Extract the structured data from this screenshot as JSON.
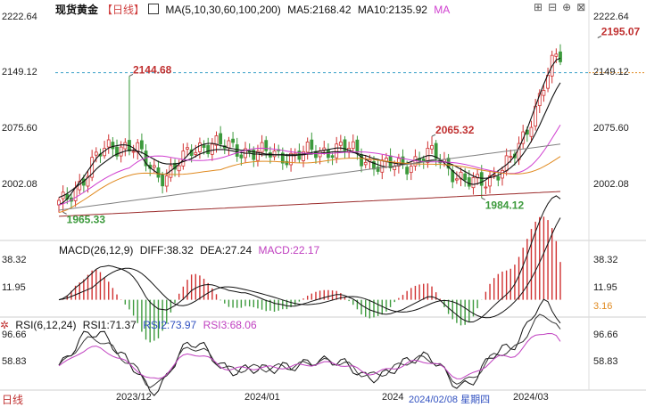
{
  "header": {
    "title": "现货黄金",
    "period": "【日线】",
    "ma_label": "MA(5,10,30,60,100,200)",
    "ma5": "MA5:2168.42",
    "ma10": "MA10:2135.92",
    "ma_tail": "MA"
  },
  "macd_header": {
    "label": "MACD(26,12,9)",
    "diff": "DIFF:38.32",
    "dea": "DEA:27.24",
    "macd": "MACD:22.17"
  },
  "rsi_header": {
    "label": "RSI(6,12,24)",
    "rsi1": "RSI1:71.37",
    "rsi2": "RSI2:73.97",
    "rsi3": "RSI3:68.06"
  },
  "footer": {
    "period": "日线"
  },
  "toolbar_icons": [
    "expand-icon",
    "shrink-icon",
    "add-indicator-icon",
    "close-icon"
  ],
  "colors": {
    "up": "#d03030",
    "down": "#3c9a3c",
    "ma5": "#111111",
    "ma10": "#111111",
    "ma30": "#d040d0",
    "ma60": "#e08a20",
    "ma100": "#808080",
    "ma200": "#9b2b2b",
    "diff": "#111111",
    "dea": "#111111",
    "rsi1": "#111111",
    "rsi2": "#333333",
    "rsi3": "#c040c0"
  },
  "chart_data": {
    "type": "candlestick",
    "price_axis": {
      "ticks": [
        "2222.64",
        "2149.12",
        "2075.60",
        "2002.08"
      ],
      "current": "2149.12"
    },
    "price_annotations": [
      {
        "label": "2144.68",
        "value": 2144.68,
        "index": 17,
        "kind": "high"
      },
      {
        "label": "1965.33",
        "value": 1965.33,
        "index": 1,
        "kind": "low"
      },
      {
        "label": "2065.32",
        "value": 2065.32,
        "index": 90,
        "kind": "high"
      },
      {
        "label": "1984.12",
        "value": 1984.12,
        "index": 102,
        "kind": "low"
      },
      {
        "label": "2195.07",
        "value": 2195.07,
        "index": 130,
        "kind": "high"
      }
    ],
    "macd_axis": {
      "ticks": [
        "38.32",
        "11.95",
        "3.16"
      ]
    },
    "rsi_axis": {
      "ticks": [
        "96.66",
        "58.83"
      ]
    },
    "date_labels": [
      {
        "label": "2023/12",
        "index": 22
      },
      {
        "label": "2024/01",
        "index": 54
      },
      {
        "label": "2024",
        "index": 86
      },
      {
        "label": "2024/02/08 星期四",
        "index": 100
      },
      {
        "label": "2024/03",
        "index": 123
      }
    ],
    "series": [
      {
        "name": "MA5",
        "values": [
          1975,
          1978,
          1983,
          1990,
          1998,
          2005,
          2012,
          2020,
          2028,
          2036,
          2042,
          2046,
          2050,
          2052,
          2053,
          2054,
          2054,
          2053,
          2050,
          2045,
          2038,
          2030,
          2024,
          2020,
          2016,
          2015,
          2016,
          2020,
          2024,
          2029,
          2034,
          2040,
          2046,
          2050,
          2053,
          2055,
          2056,
          2056,
          2055,
          2053,
          2052,
          2050,
          2049,
          2048,
          2047,
          2047,
          2046,
          2045,
          2044,
          2043,
          2042,
          2042,
          2041,
          2041,
          2041,
          2040,
          2040,
          2040,
          2041,
          2042,
          2043,
          2044,
          2045,
          2046,
          2047,
          2048,
          2049,
          2050,
          2050,
          2049,
          2047,
          2045,
          2042,
          2038,
          2035,
          2032,
          2030,
          2028,
          2026,
          2025,
          2025,
          2026,
          2027,
          2028,
          2030,
          2032,
          2034,
          2036,
          2038,
          2040,
          2040,
          2038,
          2035,
          2030,
          2025,
          2020,
          2015,
          2010,
          2006,
          2003,
          2002,
          2003,
          2005,
          2008,
          2012,
          2016,
          2020,
          2024,
          2028,
          2033,
          2040,
          2050,
          2062,
          2075,
          2090,
          2105,
          2120,
          2134,
          2147,
          2158,
          2166,
          2168.4
        ]
      },
      {
        "name": "MA10",
        "values": [
          1985,
          1987,
          1990,
          1994,
          1998,
          2002,
          2006,
          2011,
          2016,
          2022,
          2027,
          2031,
          2035,
          2039,
          2042,
          2044,
          2046,
          2047,
          2047,
          2046,
          2044,
          2041,
          2038,
          2035,
          2032,
          2030,
          2029,
          2029,
          2029,
          2030,
          2032,
          2034,
          2036,
          2039,
          2042,
          2044,
          2046,
          2047,
          2048,
          2048,
          2048,
          2047,
          2046,
          2045,
          2044,
          2043,
          2043,
          2042,
          2042,
          2041,
          2041,
          2041,
          2041,
          2041,
          2041,
          2041,
          2041,
          2041,
          2041,
          2041,
          2042,
          2042,
          2043,
          2043,
          2044,
          2044,
          2045,
          2045,
          2045,
          2045,
          2045,
          2044,
          2043,
          2041,
          2040,
          2038,
          2036,
          2035,
          2033,
          2032,
          2031,
          2030,
          2029,
          2029,
          2029,
          2029,
          2030,
          2031,
          2032,
          2033,
          2034,
          2034,
          2033,
          2032,
          2030,
          2028,
          2025,
          2022,
          2019,
          2016,
          2013,
          2011,
          2010,
          2010,
          2011,
          2012,
          2014,
          2017,
          2020,
          2024,
          2029,
          2035,
          2042,
          2050,
          2059,
          2069,
          2080,
          2092,
          2104,
          2116,
          2127,
          2135.9
        ]
      }
    ]
  }
}
